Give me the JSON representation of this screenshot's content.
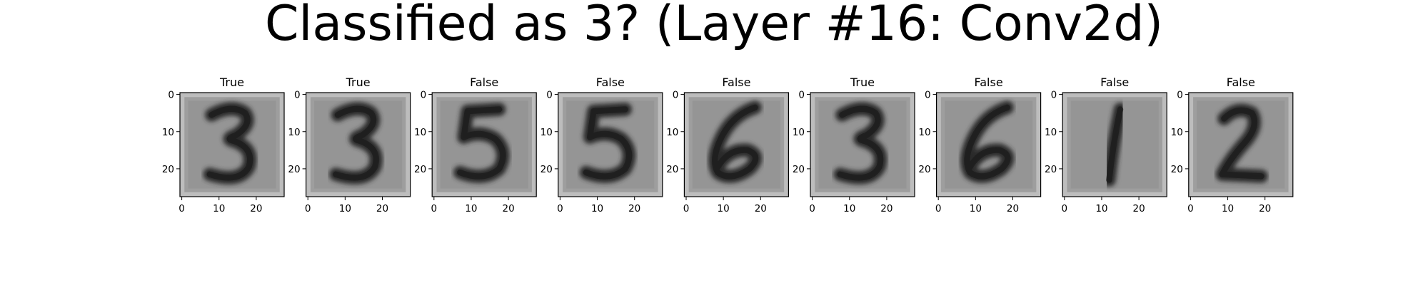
{
  "figure": {
    "title": "Classified as 3? (Layer #16: Conv2d)"
  },
  "chart_data": [
    {
      "type": "heatmap",
      "title": "True",
      "depicts": "digit 3",
      "colormap": "gray",
      "xlim": [
        0,
        27
      ],
      "ylim": [
        27,
        0
      ],
      "xticks": [
        0,
        10,
        20
      ],
      "yticks": [
        0,
        10,
        20
      ],
      "grid": false
    },
    {
      "type": "heatmap",
      "title": "True",
      "depicts": "digit 3",
      "colormap": "gray",
      "xlim": [
        0,
        27
      ],
      "ylim": [
        27,
        0
      ],
      "xticks": [
        0,
        10,
        20
      ],
      "yticks": [
        0,
        10,
        20
      ],
      "grid": false
    },
    {
      "type": "heatmap",
      "title": "False",
      "depicts": "digit 5",
      "colormap": "gray",
      "xlim": [
        0,
        27
      ],
      "ylim": [
        27,
        0
      ],
      "xticks": [
        0,
        10,
        20
      ],
      "yticks": [
        0,
        10,
        20
      ],
      "grid": false
    },
    {
      "type": "heatmap",
      "title": "False",
      "depicts": "digit 5",
      "colormap": "gray",
      "xlim": [
        0,
        27
      ],
      "ylim": [
        27,
        0
      ],
      "xticks": [
        0,
        10,
        20
      ],
      "yticks": [
        0,
        10,
        20
      ],
      "grid": false
    },
    {
      "type": "heatmap",
      "title": "False",
      "depicts": "digit 6",
      "colormap": "gray",
      "xlim": [
        0,
        27
      ],
      "ylim": [
        27,
        0
      ],
      "xticks": [
        0,
        10,
        20
      ],
      "yticks": [
        0,
        10,
        20
      ],
      "grid": false
    },
    {
      "type": "heatmap",
      "title": "True",
      "depicts": "digit 3",
      "colormap": "gray",
      "xlim": [
        0,
        27
      ],
      "ylim": [
        27,
        0
      ],
      "xticks": [
        0,
        10,
        20
      ],
      "yticks": [
        0,
        10,
        20
      ],
      "grid": false
    },
    {
      "type": "heatmap",
      "title": "False",
      "depicts": "digit 6",
      "colormap": "gray",
      "xlim": [
        0,
        27
      ],
      "ylim": [
        27,
        0
      ],
      "xticks": [
        0,
        10,
        20
      ],
      "yticks": [
        0,
        10,
        20
      ],
      "grid": false
    },
    {
      "type": "heatmap",
      "title": "False",
      "depicts": "digit 1",
      "colormap": "gray",
      "xlim": [
        0,
        27
      ],
      "ylim": [
        27,
        0
      ],
      "xticks": [
        0,
        10,
        20
      ],
      "yticks": [
        0,
        10,
        20
      ],
      "grid": false
    },
    {
      "type": "heatmap",
      "title": "False",
      "depicts": "digit 2",
      "colormap": "gray",
      "xlim": [
        0,
        27
      ],
      "ylim": [
        27,
        0
      ],
      "xticks": [
        0,
        10,
        20
      ],
      "yticks": [
        0,
        10,
        20
      ],
      "grid": false
    }
  ]
}
